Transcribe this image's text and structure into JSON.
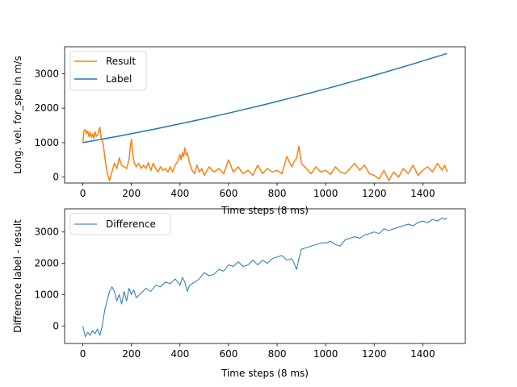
{
  "chart_data": [
    {
      "type": "line",
      "title": "",
      "xlabel": "Time steps (8 ms)",
      "ylabel": "Long. vel. for_spe in m/s",
      "xlim": [
        -75,
        1575
      ],
      "ylim": [
        -170,
        3780
      ],
      "xticks": [
        0,
        200,
        400,
        600,
        800,
        1000,
        1200,
        1400
      ],
      "yticks": [
        0,
        1000,
        2000,
        3000
      ],
      "legend": "top-left",
      "grid": false,
      "series": [
        {
          "name": "Result",
          "color": "#ff7f0e",
          "x": [
            0,
            5,
            10,
            15,
            20,
            25,
            30,
            35,
            40,
            45,
            50,
            55,
            60,
            65,
            70,
            75,
            80,
            85,
            90,
            95,
            100,
            105,
            110,
            115,
            120,
            130,
            140,
            150,
            160,
            170,
            180,
            190,
            195,
            200,
            205,
            210,
            220,
            230,
            240,
            250,
            260,
            270,
            280,
            290,
            300,
            310,
            320,
            330,
            340,
            350,
            360,
            370,
            380,
            390,
            400,
            405,
            410,
            415,
            420,
            425,
            430,
            440,
            450,
            460,
            470,
            480,
            490,
            500,
            520,
            540,
            560,
            580,
            600,
            620,
            640,
            660,
            680,
            700,
            720,
            740,
            760,
            780,
            800,
            820,
            840,
            860,
            870,
            880,
            890,
            900,
            920,
            940,
            960,
            980,
            1000,
            1020,
            1040,
            1060,
            1080,
            1100,
            1120,
            1140,
            1160,
            1180,
            1200,
            1220,
            1240,
            1260,
            1280,
            1300,
            1320,
            1340,
            1360,
            1380,
            1400,
            1420,
            1440,
            1460,
            1480,
            1490,
            1500
          ],
          "values": [
            1000,
            1350,
            1380,
            1260,
            1340,
            1180,
            1300,
            1150,
            1250,
            1130,
            1320,
            1180,
            1220,
            1320,
            1450,
            1150,
            1060,
            900,
            600,
            350,
            150,
            0,
            -100,
            30,
            150,
            400,
            250,
            560,
            340,
            300,
            250,
            500,
            850,
            1100,
            700,
            450,
            300,
            400,
            250,
            350,
            250,
            420,
            200,
            400,
            250,
            150,
            300,
            200,
            250,
            150,
            300,
            150,
            350,
            450,
            650,
            500,
            700,
            600,
            850,
            650,
            700,
            400,
            200,
            100,
            350,
            150,
            250,
            50,
            300,
            150,
            250,
            100,
            500,
            150,
            300,
            100,
            200,
            50,
            350,
            100,
            250,
            150,
            200,
            100,
            600,
            300,
            450,
            550,
            900,
            400,
            250,
            100,
            300,
            150,
            200,
            80,
            300,
            150,
            100,
            250,
            400,
            200,
            350,
            100,
            50,
            -50,
            200,
            -100,
            150,
            0,
            250,
            100,
            350,
            50,
            200,
            300,
            150,
            400,
            200,
            350,
            150
          ]
        },
        {
          "name": "Label",
          "color": "#1f77b4",
          "x": [
            0,
            150,
            300,
            450,
            600,
            750,
            900,
            1050,
            1200,
            1350,
            1500
          ],
          "values": [
            1000,
            1192,
            1399,
            1620,
            1856,
            2107,
            2373,
            2654,
            2950,
            3261,
            3587
          ]
        }
      ]
    },
    {
      "type": "line",
      "title": "",
      "xlabel": "Time steps (8 ms)",
      "ylabel": "Difference label - result",
      "xlim": [
        -75,
        1575
      ],
      "ylim": [
        -560,
        3740
      ],
      "xticks": [
        0,
        200,
        400,
        600,
        800,
        1000,
        1200,
        1400
      ],
      "yticks": [
        0,
        1000,
        2000,
        3000
      ],
      "legend": "top-left",
      "grid": false,
      "series": [
        {
          "name": "Difference",
          "color": "#1f77b4",
          "x": [
            0,
            10,
            20,
            30,
            40,
            50,
            60,
            70,
            80,
            90,
            100,
            110,
            120,
            130,
            140,
            150,
            160,
            170,
            180,
            190,
            200,
            210,
            220,
            240,
            260,
            280,
            300,
            320,
            340,
            360,
            380,
            400,
            410,
            420,
            430,
            440,
            460,
            480,
            500,
            520,
            540,
            560,
            580,
            600,
            620,
            640,
            660,
            680,
            700,
            720,
            740,
            760,
            780,
            800,
            820,
            840,
            860,
            870,
            880,
            890,
            900,
            920,
            940,
            960,
            980,
            1000,
            1020,
            1040,
            1060,
            1080,
            1100,
            1120,
            1140,
            1160,
            1180,
            1200,
            1220,
            1240,
            1260,
            1280,
            1300,
            1320,
            1340,
            1360,
            1380,
            1400,
            1420,
            1440,
            1460,
            1480,
            1490,
            1500
          ],
          "values": [
            0,
            -350,
            -200,
            -300,
            -150,
            -250,
            -100,
            -300,
            0,
            500,
            800,
            1100,
            1250,
            1100,
            800,
            1000,
            700,
            1100,
            800,
            1200,
            1000,
            1150,
            900,
            1050,
            1200,
            1100,
            1300,
            1250,
            1400,
            1350,
            1500,
            1300,
            1550,
            1400,
            1100,
            1300,
            1400,
            1500,
            1700,
            1600,
            1650,
            1800,
            1750,
            1950,
            1900,
            2050,
            1900,
            1950,
            2100,
            1950,
            2100,
            2000,
            2150,
            2200,
            2250,
            2100,
            2150,
            2000,
            1800,
            2150,
            2450,
            2500,
            2550,
            2600,
            2650,
            2650,
            2700,
            2600,
            2550,
            2750,
            2800,
            2850,
            2800,
            2900,
            2950,
            3000,
            2950,
            3100,
            3050,
            3100,
            3150,
            3200,
            3250,
            3200,
            3300,
            3350,
            3300,
            3400,
            3350,
            3450,
            3400,
            3450
          ]
        }
      ]
    }
  ]
}
